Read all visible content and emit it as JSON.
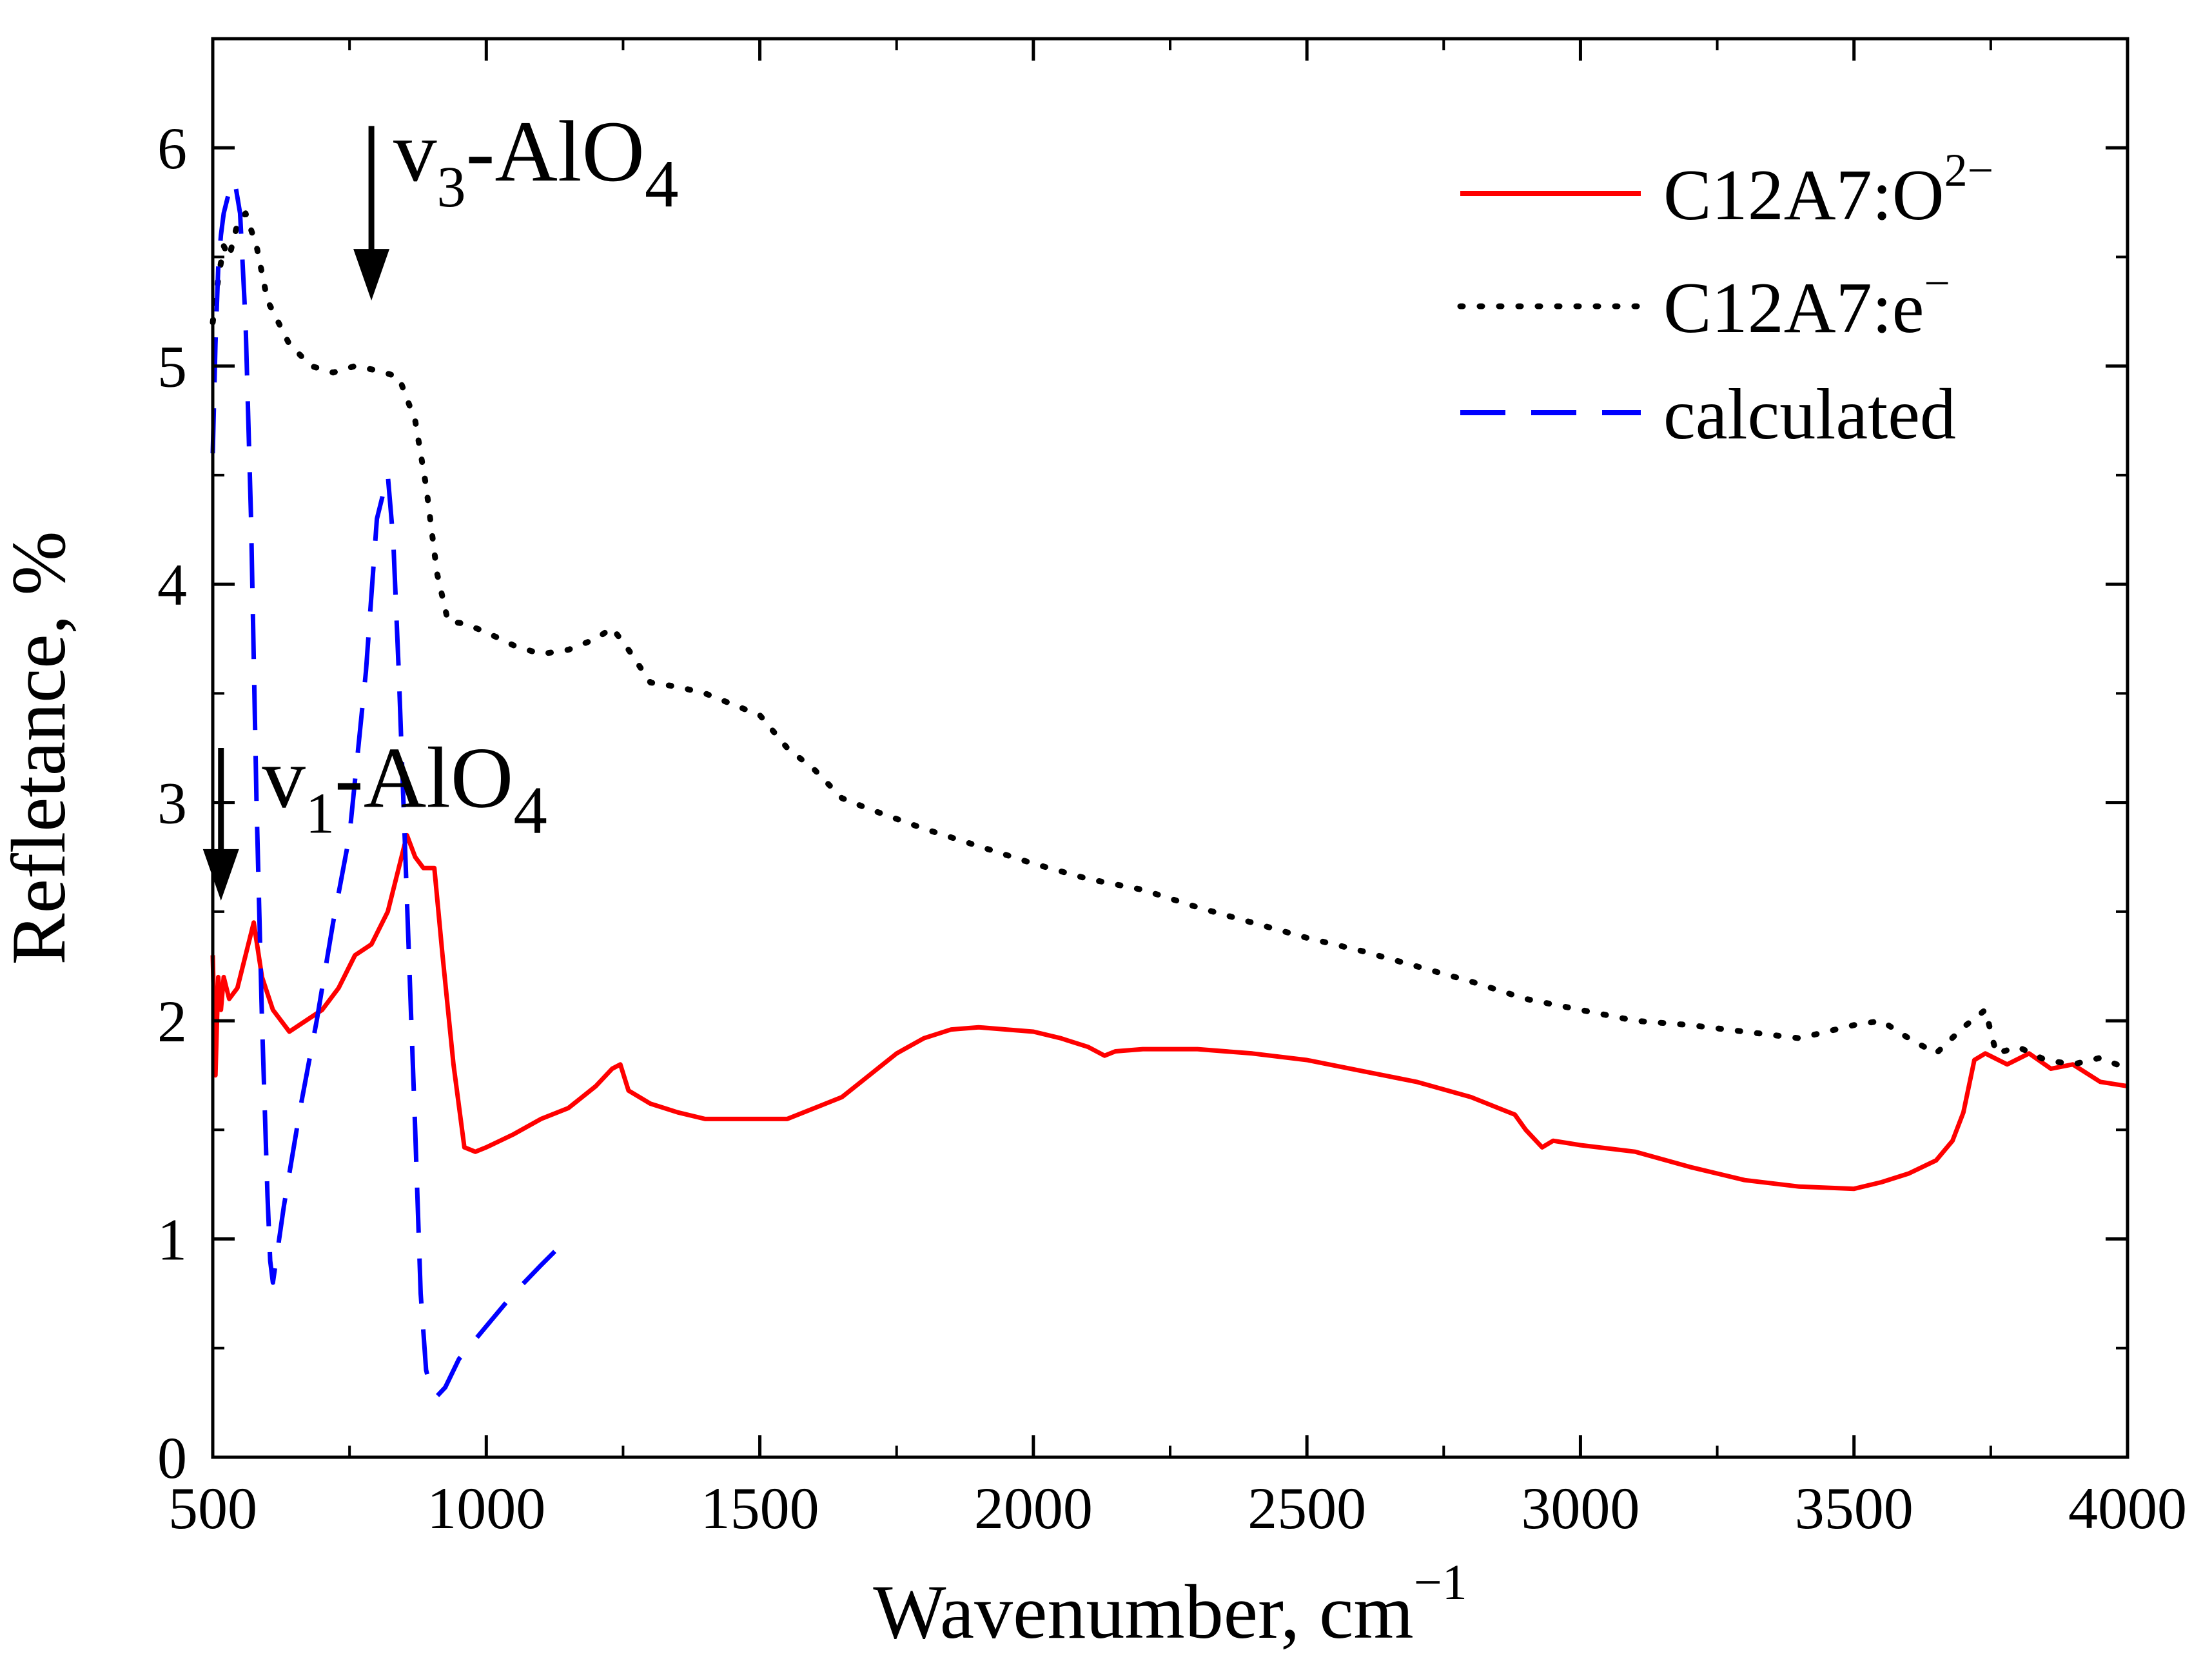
{
  "chart_data": {
    "type": "line",
    "xlabel": "Wavenumber, cm",
    "xlabel_sup": "−1",
    "ylabel": "Refletance, %",
    "xlim": [
      500,
      4000
    ],
    "ylim": [
      0,
      6.5
    ],
    "x_ticks": [
      500,
      1000,
      1500,
      2000,
      2500,
      3000,
      3500,
      4000
    ],
    "x_tick_labels": [
      "500",
      "1000",
      "1500",
      "2000",
      "2500",
      "3000",
      "3500",
      "4000"
    ],
    "y_ticks": [
      0,
      1,
      2,
      3,
      4,
      5,
      6
    ],
    "y_tick_labels": [
      "0",
      "1",
      "2",
      "3",
      "4",
      "5",
      "6"
    ],
    "grid": false,
    "legend_position": "top-right",
    "annotations": [
      {
        "id": "v3",
        "base": "v",
        "sub": "3",
        "rest": "-AlO",
        "sub2": "4",
        "arrow_x": 790,
        "arrow_from": 6.1,
        "arrow_to": 5.3,
        "text_x": 830,
        "text_y": 5.85
      },
      {
        "id": "v1",
        "base": "v",
        "sub": "1",
        "rest": "-AlO",
        "sub2": "4",
        "arrow_x": 515,
        "arrow_from": 3.25,
        "arrow_to": 2.55,
        "text_x": 590,
        "text_y": 2.98
      }
    ],
    "series": [
      {
        "name": "C12A7:O",
        "name_sup": "2−",
        "color": "#ff0000",
        "style": "solid",
        "x": [
          500,
          505,
          510,
          515,
          520,
          530,
          545,
          560,
          575,
          590,
          610,
          640,
          670,
          700,
          730,
          760,
          790,
          820,
          840,
          855,
          870,
          885,
          905,
          920,
          940,
          960,
          980,
          1000,
          1050,
          1100,
          1150,
          1200,
          1230,
          1245,
          1260,
          1300,
          1350,
          1400,
          1450,
          1500,
          1550,
          1600,
          1650,
          1700,
          1750,
          1800,
          1850,
          1900,
          1950,
          2000,
          2050,
          2100,
          2130,
          2150,
          2200,
          2300,
          2400,
          2500,
          2600,
          2700,
          2800,
          2850,
          2880,
          2900,
          2930,
          2950,
          3000,
          3100,
          3200,
          3300,
          3400,
          3500,
          3550,
          3600,
          3650,
          3680,
          3700,
          3720,
          3740,
          3780,
          3820,
          3860,
          3900,
          3950,
          4000
        ],
        "y": [
          2.3,
          1.75,
          2.2,
          2.05,
          2.2,
          2.1,
          2.15,
          2.3,
          2.45,
          2.2,
          2.05,
          1.95,
          2.0,
          2.05,
          2.15,
          2.3,
          2.35,
          2.5,
          2.7,
          2.85,
          2.75,
          2.7,
          2.7,
          2.3,
          1.8,
          1.42,
          1.4,
          1.42,
          1.48,
          1.55,
          1.6,
          1.7,
          1.78,
          1.8,
          1.68,
          1.62,
          1.58,
          1.55,
          1.55,
          1.55,
          1.55,
          1.6,
          1.65,
          1.75,
          1.85,
          1.92,
          1.96,
          1.97,
          1.96,
          1.95,
          1.92,
          1.88,
          1.84,
          1.86,
          1.87,
          1.87,
          1.85,
          1.82,
          1.77,
          1.72,
          1.65,
          1.6,
          1.57,
          1.5,
          1.42,
          1.45,
          1.43,
          1.4,
          1.33,
          1.27,
          1.24,
          1.23,
          1.26,
          1.3,
          1.36,
          1.45,
          1.58,
          1.82,
          1.85,
          1.8,
          1.85,
          1.78,
          1.8,
          1.72,
          1.7
        ]
      },
      {
        "name": "C12A7:e",
        "name_sup": "−",
        "color": "#000000",
        "style": "dotted",
        "x": [
          500,
          510,
          520,
          530,
          545,
          560,
          580,
          600,
          640,
          680,
          720,
          760,
          800,
          840,
          870,
          890,
          910,
          930,
          960,
          1000,
          1050,
          1100,
          1150,
          1200,
          1230,
          1260,
          1300,
          1350,
          1400,
          1450,
          1500,
          1550,
          1600,
          1650,
          1700,
          1800,
          1900,
          2000,
          2100,
          2200,
          2300,
          2400,
          2500,
          2600,
          2700,
          2800,
          2900,
          3000,
          3100,
          3200,
          3300,
          3400,
          3450,
          3500,
          3550,
          3600,
          3650,
          3700,
          3740,
          3760,
          3800,
          3850,
          3900,
          3950,
          4000
        ],
        "y": [
          5.2,
          5.4,
          5.55,
          5.5,
          5.65,
          5.7,
          5.55,
          5.3,
          5.1,
          5.0,
          4.97,
          5.0,
          4.98,
          4.95,
          4.75,
          4.45,
          4.05,
          3.83,
          3.82,
          3.78,
          3.72,
          3.68,
          3.7,
          3.75,
          3.8,
          3.7,
          3.55,
          3.53,
          3.5,
          3.45,
          3.4,
          3.25,
          3.15,
          3.02,
          2.97,
          2.88,
          2.8,
          2.72,
          2.65,
          2.6,
          2.52,
          2.45,
          2.38,
          2.32,
          2.25,
          2.18,
          2.1,
          2.05,
          2.0,
          1.98,
          1.95,
          1.92,
          1.95,
          1.98,
          2.0,
          1.92,
          1.85,
          1.97,
          2.05,
          1.85,
          1.88,
          1.82,
          1.8,
          1.83,
          1.78
        ]
      },
      {
        "name": "calculated",
        "color": "#0000ff",
        "style": "dashed",
        "x": [
          500,
          505,
          510,
          515,
          520,
          530,
          540,
          550,
          560,
          570,
          580,
          590,
          600,
          605,
          610,
          630,
          660,
          690,
          720,
          750,
          780,
          800,
          820,
          830,
          840,
          850,
          860,
          870,
          880,
          890,
          900,
          910,
          925,
          950,
          1000,
          1050,
          1100,
          1140
        ],
        "y": [
          4.6,
          5.1,
          5.45,
          5.6,
          5.7,
          5.8,
          5.85,
          5.7,
          5.2,
          4.3,
          3.0,
          2.0,
          1.2,
          0.9,
          0.8,
          1.15,
          1.6,
          2.0,
          2.45,
          2.85,
          3.6,
          4.3,
          4.5,
          4.2,
          3.6,
          2.9,
          2.2,
          1.5,
          0.75,
          0.4,
          0.3,
          0.28,
          0.32,
          0.45,
          0.6,
          0.75,
          0.88,
          0.98
        ]
      }
    ]
  }
}
